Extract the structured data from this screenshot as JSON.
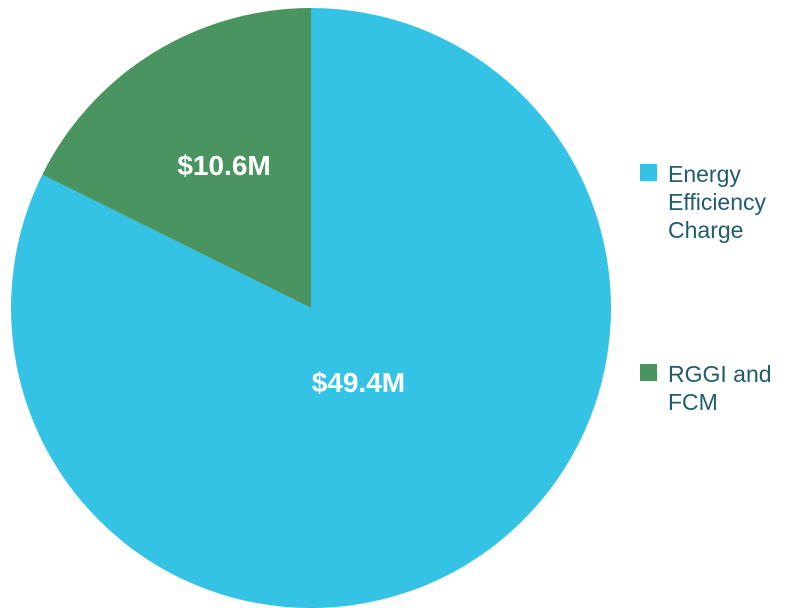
{
  "chart_data": {
    "type": "pie",
    "categories": [
      "Energy Efficiency Charge",
      "RGGI and FCM"
    ],
    "values": [
      49.4,
      10.6
    ],
    "value_labels": [
      "$49.4M",
      "$10.6M"
    ],
    "colors": [
      "#35c3e5",
      "#4a9460"
    ],
    "legend": "right"
  }
}
